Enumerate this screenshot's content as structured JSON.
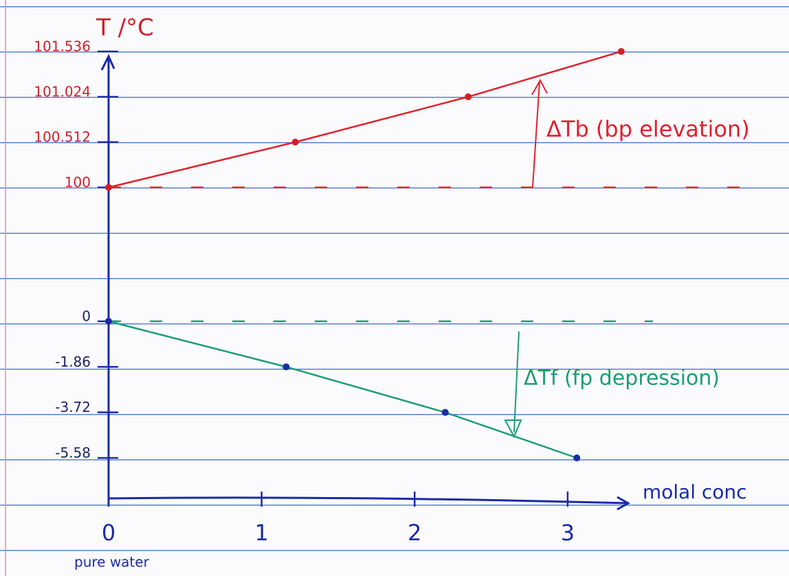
{
  "chart_data": [
    {
      "type": "line",
      "y_label": "T /°C",
      "color": "#e3202c",
      "tick_color": "#d0202a",
      "x": [
        0,
        1.22,
        2.35,
        3.35
      ],
      "values": [
        100,
        100.512,
        101.024,
        101.536
      ],
      "xlim": [
        0,
        3.4
      ],
      "ylim": [
        100,
        101.536
      ],
      "yticks": [
        100,
        100.512,
        101.024,
        101.536
      ],
      "baseline": true,
      "annotation": "ΔTb (bp elevation)"
    },
    {
      "type": "line",
      "color": "#1d9c78",
      "tick_color": "#1f1f66",
      "x": [
        0,
        1.16,
        2.2,
        3.06
      ],
      "values": [
        0,
        -1.86,
        -3.72,
        -5.58
      ],
      "xlim": [
        0,
        3.4
      ],
      "ylim": [
        -5.58,
        0
      ],
      "yticks": [
        0,
        -1.86,
        -3.72,
        -5.58
      ],
      "xticks": [
        0,
        1,
        2,
        3
      ],
      "x_label": "molal conc",
      "x_note": "pure water",
      "baseline": true,
      "annotation": "ΔTf (fp depression)"
    }
  ]
}
